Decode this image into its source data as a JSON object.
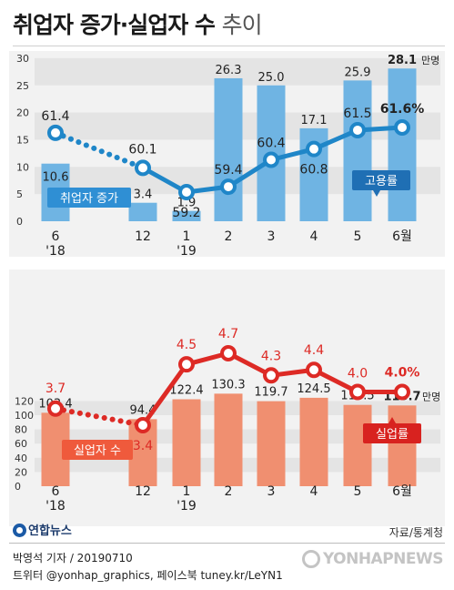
{
  "title": {
    "main": "취업자 증가·실업자 수",
    "sub": "추이"
  },
  "chart_data": [
    {
      "type": "bar",
      "categories": [
        "6\n'18",
        "12",
        "1\n'19",
        "2",
        "3",
        "4",
        "5",
        "6월"
      ],
      "y_ticks": [
        "30",
        "25",
        "20",
        "15",
        "10",
        "5",
        "0"
      ],
      "ylim": [
        0,
        30
      ],
      "series": [
        {
          "name": "취업자 증가",
          "values": [
            10.6,
            3.4,
            1.9,
            26.3,
            25.0,
            17.1,
            25.9,
            28.1
          ],
          "labels": [
            "10.6",
            "3.4",
            "1.9",
            "26.3",
            "25.0",
            "17.1",
            "25.9",
            "28.1"
          ]
        },
        {
          "name": "고용률",
          "values": [
            61.4,
            60.1,
            59.2,
            59.4,
            60.4,
            60.8,
            61.5,
            61.6
          ],
          "labels": [
            "61.4",
            "60.1",
            "59.2",
            "59.4",
            "60.4",
            "60.8",
            "61.5",
            "61.6%"
          ]
        }
      ],
      "unit": "만명",
      "bar_color": "#6fb4e3",
      "line_color": "#1f86c8"
    },
    {
      "type": "bar",
      "categories": [
        "6\n'18",
        "12",
        "1\n'19",
        "2",
        "3",
        "4",
        "5",
        "6월"
      ],
      "y_ticks": [
        "120",
        "100",
        "80",
        "60",
        "40",
        "20",
        "0"
      ],
      "ylim": [
        0,
        130
      ],
      "series": [
        {
          "name": "실업자 수",
          "values": [
            103.4,
            94.4,
            122.4,
            130.3,
            119.7,
            124.5,
            114.5,
            113.7
          ],
          "labels": [
            "103.4",
            "94.4",
            "122.4",
            "130.3",
            "119.7",
            "124.5",
            "114.5",
            "113.7"
          ]
        },
        {
          "name": "실업률",
          "values": [
            3.7,
            3.4,
            4.5,
            4.7,
            4.3,
            4.4,
            4.0,
            4.0
          ],
          "labels": [
            "3.7",
            "3.4",
            "4.5",
            "4.7",
            "4.3",
            "4.4",
            "4.0",
            "4.0%"
          ]
        }
      ],
      "unit": "만명",
      "bar_color": "#f08f70",
      "line_color": "#dd2a25"
    }
  ],
  "footer": {
    "logo": "연합뉴스",
    "source": "자료/통계청",
    "byline1": "박영석 기자 / 20190710",
    "byline2": "트위터 @yonhap_graphics, 페이스북 tuney.kr/LeYN1",
    "watermark": "YONHAPNEWS"
  }
}
